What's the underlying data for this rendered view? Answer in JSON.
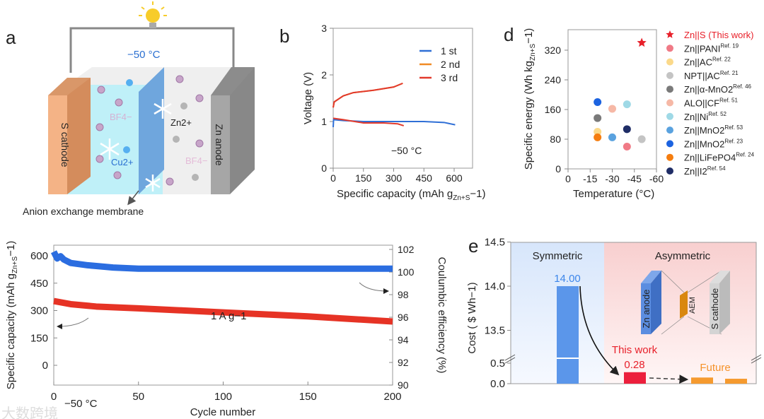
{
  "panel_labels": {
    "a": "a",
    "b": "b",
    "c": "",
    "d": "d",
    "e": "e"
  },
  "schematic": {
    "temperature": "−50 °C",
    "s_cathode": "S cathode",
    "zn_anode": "Zn anode",
    "bf4_left": "BF4−",
    "bf4_right": "BF4−",
    "cu_ion": "Cu2+",
    "zn_ion": "Zn2+",
    "membrane_label": "Anion exchange membrane",
    "icons": [
      "light-bulb-icon",
      "snowflake-icon"
    ]
  },
  "watermark": "大数跨境",
  "chart_data": [
    {
      "id": "b",
      "type": "line",
      "xlabel": "Specific capacity (mAh g",
      "xlabel_sub": "Zn+S",
      "xlabel_end": "−1)",
      "ylabel": "Voltage (V)",
      "xlim": [
        0,
        600
      ],
      "ylim": [
        0,
        3
      ],
      "xticks": [
        "0",
        "150",
        "300",
        "450",
        "600"
      ],
      "yticks": [
        "0",
        "1",
        "2",
        "3"
      ],
      "annotation": "−50 °C",
      "legend_position": "top-right",
      "series": [
        {
          "name": "1 st",
          "color": "#2f6fd6",
          "points": [
            [
              0,
              0.88
            ],
            [
              2,
              1.04
            ],
            [
              50,
              1.02
            ],
            [
              150,
              1.0
            ],
            [
              300,
              1.0
            ],
            [
              450,
              1.0
            ],
            [
              550,
              0.98
            ],
            [
              605,
              0.93
            ]
          ]
        },
        {
          "name": "2 nd",
          "color": "#f08a24",
          "points": [
            [
              0,
              1.3
            ],
            [
              5,
              1.42
            ],
            [
              50,
              1.55
            ],
            [
              100,
              1.62
            ],
            [
              200,
              1.67
            ],
            [
              300,
              1.74
            ],
            [
              345,
              1.82
            ]
          ]
        },
        {
          "name": "3 rd",
          "color": "#e23a2c",
          "points": [
            [
              0,
              1.3
            ],
            [
              5,
              1.42
            ],
            [
              50,
              1.55
            ],
            [
              100,
              1.62
            ],
            [
              200,
              1.67
            ],
            [
              300,
              1.74
            ],
            [
              345,
              1.82
            ]
          ],
          "discharge": [
            [
              0,
              1.07
            ],
            [
              50,
              1.04
            ],
            [
              150,
              0.97
            ],
            [
              250,
              0.97
            ],
            [
              320,
              0.95
            ],
            [
              350,
              0.91
            ]
          ]
        }
      ]
    },
    {
      "id": "d",
      "type": "scatter",
      "xlabel": "Temperature (°C)",
      "ylabel": "Specific energy (Wh kg",
      "ylabel_sub": "Zn+S",
      "ylabel_end": "−1)",
      "xlim": [
        0,
        -60
      ],
      "ylim": [
        0,
        380
      ],
      "xticks": [
        "0",
        "-15",
        "-30",
        "-45",
        "-60"
      ],
      "yticks": [
        "0",
        "80",
        "160",
        "240",
        "320"
      ],
      "legend_position": "right",
      "series": [
        {
          "name": "Zn||S (This work)",
          "ref": "",
          "color": "#e8202a",
          "marker": "star",
          "x": -50,
          "y": 340
        },
        {
          "name": "Zn||PANI",
          "ref": "Ref. 19",
          "color": "#f07a86",
          "x": -40,
          "y": 60
        },
        {
          "name": "Zn||AC",
          "ref": "Ref. 22",
          "color": "#fbd98a",
          "x": -20,
          "y": 100
        },
        {
          "name": "NPT||AC",
          "ref": "Ref. 21",
          "color": "#c4c4c4",
          "x": -50,
          "y": 80
        },
        {
          "name": "Zn||α-MnO2",
          "ref": "Ref. 46",
          "color": "#7a7a7a",
          "x": -20,
          "y": 137
        },
        {
          "name": "ALO||CF",
          "ref": "Ref. 51",
          "color": "#f6b8a6",
          "x": -30,
          "y": 162
        },
        {
          "name": "Zn||Ni",
          "ref": "Ref. 52",
          "color": "#9fd9e6",
          "x": -40,
          "y": 174
        },
        {
          "name": "Zn||MnO2",
          "ref": "Ref. 53",
          "color": "#5aa2df",
          "x": -30,
          "y": 85
        },
        {
          "name": "Zn||MnO2",
          "ref": "Ref. 23",
          "color": "#1c63e0",
          "x": -20,
          "y": 180
        },
        {
          "name": "Zn||LiFePO4",
          "ref": "Ref. 24",
          "color": "#f57d0f",
          "x": -20,
          "y": 85
        },
        {
          "name": "Zn||I2",
          "ref": "Ref. 54",
          "color": "#1f2d66",
          "x": -40,
          "y": 107
        }
      ]
    },
    {
      "id": "c",
      "type": "scatter",
      "xlabel": "Cycle number",
      "ylabel": "Specific capacity (mAh g",
      "ylabel_sub": "Zn+S",
      "ylabel_end": "−1)",
      "y2label": "Coulumbic efficiency (%)",
      "xlim": [
        0,
        200
      ],
      "ylim": [
        -100,
        680
      ],
      "y2lim": [
        90,
        102.4
      ],
      "xticks": [
        "0",
        "50",
        "100",
        "150",
        "200"
      ],
      "yticks": [
        "0",
        "150",
        "300",
        "450",
        "600"
      ],
      "y2ticks": [
        "90",
        "92",
        "94",
        "96",
        "98",
        "100",
        "102"
      ],
      "annotations": [
        "1 A g−1",
        "−50 °C"
      ],
      "series": [
        {
          "name": "Specific capacity",
          "axis": "left",
          "color": "#e63325",
          "points": [
            [
              0,
              352
            ],
            [
              10,
              335
            ],
            [
              25,
              322
            ],
            [
              50,
              312
            ],
            [
              100,
              290
            ],
            [
              150,
              268
            ],
            [
              200,
              240
            ]
          ]
        },
        {
          "name": "Coulombic efficiency",
          "axis": "right",
          "color": "#2b6de0",
          "points": [
            [
              0,
              101.8
            ],
            [
              2,
              101.2
            ],
            [
              4,
              101.4
            ],
            [
              6,
              101.1
            ],
            [
              10,
              100.8
            ],
            [
              20,
              100.6
            ],
            [
              35,
              100.4
            ],
            [
              50,
              100.3
            ],
            [
              100,
              100.3
            ],
            [
              150,
              100.3
            ],
            [
              200,
              100.3
            ]
          ]
        }
      ]
    },
    {
      "id": "e",
      "type": "bar",
      "ylabel": "Cost ( $ Wh−1)",
      "yticks_upper": [
        "13.5",
        "14.0",
        "14.5"
      ],
      "yticks_lower": [
        "0.0",
        "0.5"
      ],
      "regions": [
        "Symmetric",
        "Asymmetric"
      ],
      "bars": [
        {
          "name": "Symmetric",
          "value": 14.0,
          "label": "14.00",
          "color": "#5b96ea"
        },
        {
          "name": "This work",
          "value": 0.28,
          "label": "0.28",
          "color": "#ec1f3c"
        },
        {
          "name": "Future 1",
          "value": 0.15,
          "label": "",
          "color": "#f59a2f"
        },
        {
          "name": "Future 2",
          "value": 0.12,
          "label": "",
          "color": "#f59a2f"
        }
      ],
      "this_work_label": "This work",
      "future_label": "Future",
      "inset": {
        "anode": "Zn anode",
        "membrane": "AEM",
        "cathode": "S cathode"
      }
    }
  ]
}
